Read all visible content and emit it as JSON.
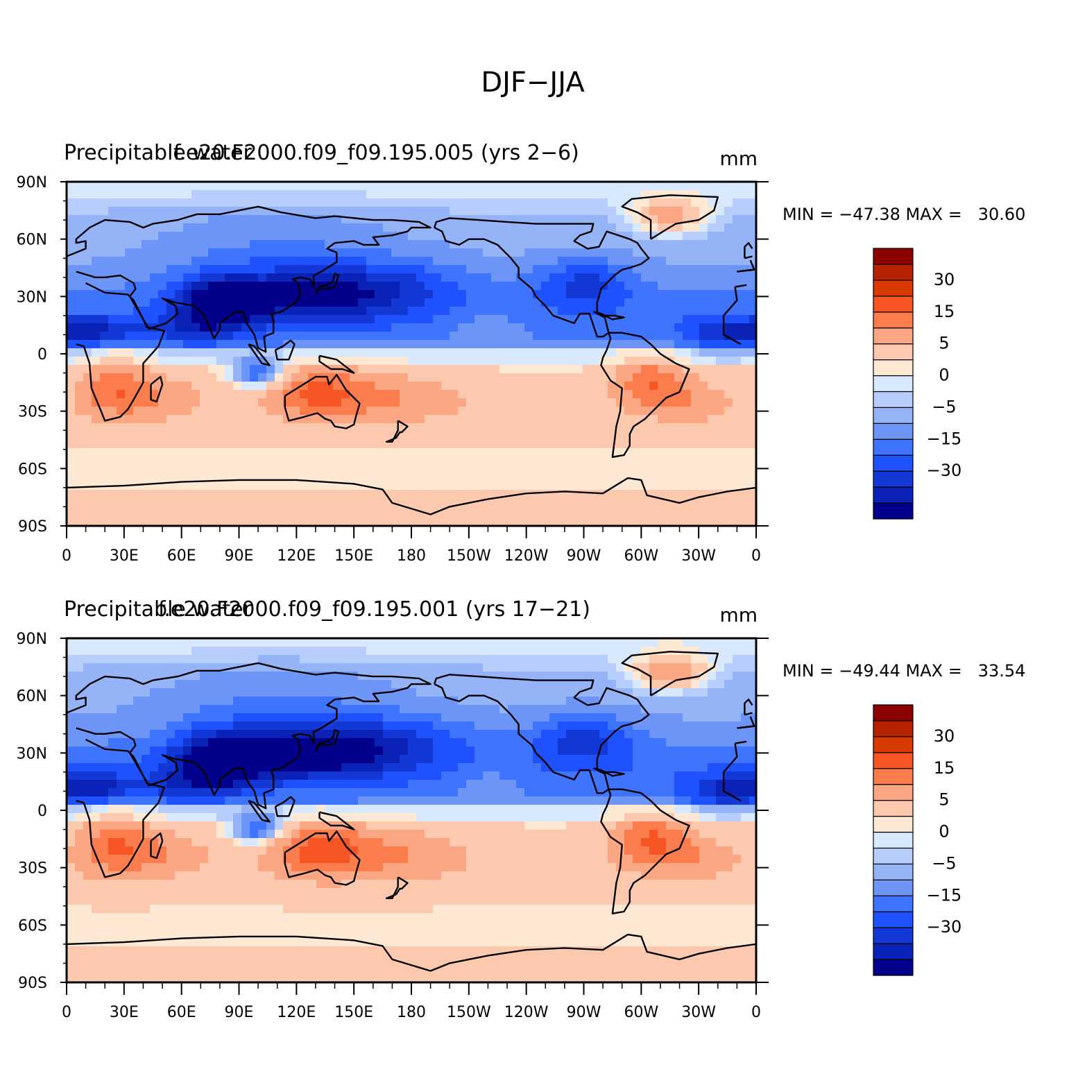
{
  "figure": {
    "title": "DJF−JJA"
  },
  "levels": [
    -40,
    -30,
    -25,
    -20,
    -15,
    -10,
    -5,
    -2,
    0,
    2,
    5,
    10,
    15,
    20,
    25,
    30,
    40
  ],
  "colors": {
    "bins": [
      "#03008c",
      "#0a22b6",
      "#1438d6",
      "#1e52ff",
      "#3f74ff",
      "#6c95f7",
      "#94b4f7",
      "#b7cdfb",
      "#d8e9ff",
      "#fde8d4",
      "#fcc9ae",
      "#fba784",
      "#fb7d4d",
      "#f65524",
      "#d93a00",
      "#b52300",
      "#8c0000"
    ],
    "coast": "#000000"
  },
  "panels": [
    {
      "left_title": "Precipitable water",
      "center_title": "f.e20.F2000.f09_f09.195.005 (yrs 2−6)",
      "units": "mm",
      "stats": "MIN = −47.38 MAX =   30.60",
      "min": -47.38,
      "max": 30.6
    },
    {
      "left_title": "Precipitable water",
      "center_title": "f.e20.F2000.f09_f09.195.001 (yrs 17−21)",
      "units": "mm",
      "stats": "MIN = −49.44 MAX =   33.54",
      "min": -49.44,
      "max": 33.54
    }
  ],
  "axes": {
    "lat_labels": [
      "90N",
      "60N",
      "30N",
      "0",
      "30S",
      "60S",
      "90S"
    ],
    "lon_labels": [
      "0",
      "30E",
      "60E",
      "90E",
      "120E",
      "150E",
      "180",
      "150W",
      "120W",
      "90W",
      "60W",
      "30W",
      "0"
    ]
  },
  "colorbar": {
    "labels": [
      "30",
      "15",
      "5",
      "0",
      "−5",
      "−15",
      "−30"
    ]
  }
}
